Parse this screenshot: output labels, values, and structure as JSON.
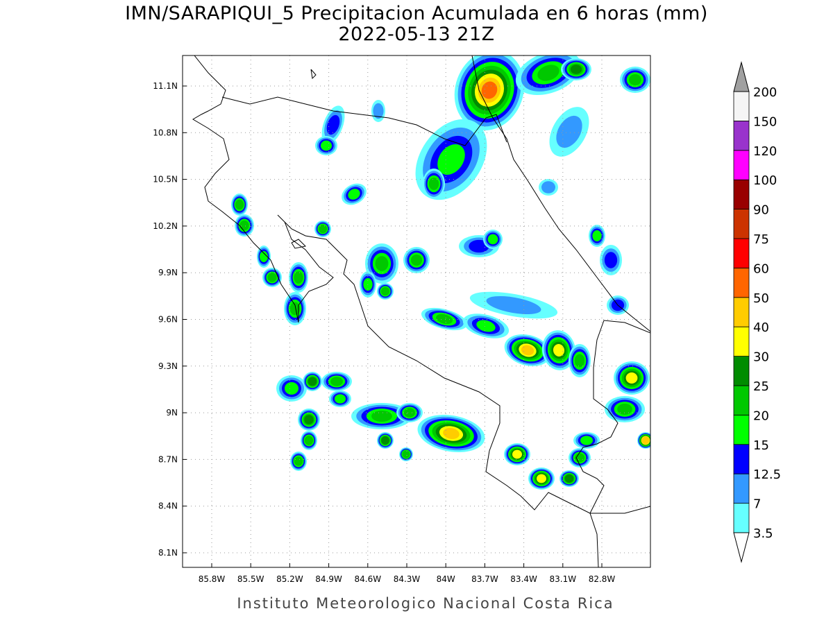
{
  "map": {
    "title": "IMN/SARAPIQUI_5 Precipitacion Acumulada en 6 horas (mm)",
    "subtitle": "2022-05-13 21Z",
    "lat_labels": [
      "8.1N",
      "8.4N",
      "8.7N",
      "9N",
      "9.3N",
      "9.6N",
      "9.9N",
      "10.2N",
      "10.5N",
      "10.8N",
      "11.1N"
    ],
    "lon_labels": [
      "85.8W",
      "85.5W",
      "85.2W",
      "84.9W",
      "84.6W",
      "84.3W",
      "84W",
      "83.7W",
      "83.4W",
      "83.1W",
      "82.8W"
    ],
    "footer": "Instituto Meteorologico Nacional Costa Rica",
    "colorbar": {
      "levels": [
        3.5,
        7,
        12.5,
        15,
        20,
        25,
        30,
        40,
        50,
        60,
        75,
        90,
        100,
        120,
        150,
        200
      ],
      "colors": [
        "#66ffff",
        "#3399ff",
        "#0000ff",
        "#00ff00",
        "#00c800",
        "#008c00",
        "#ffff00",
        "#ffcc00",
        "#ff6600",
        "#ff0000",
        "#cc3300",
        "#990000",
        "#ff00ff",
        "#9933cc",
        "#f5f5f5"
      ],
      "under_color": "#ffffff",
      "over_color": "#a0a0a0"
    }
  }
}
